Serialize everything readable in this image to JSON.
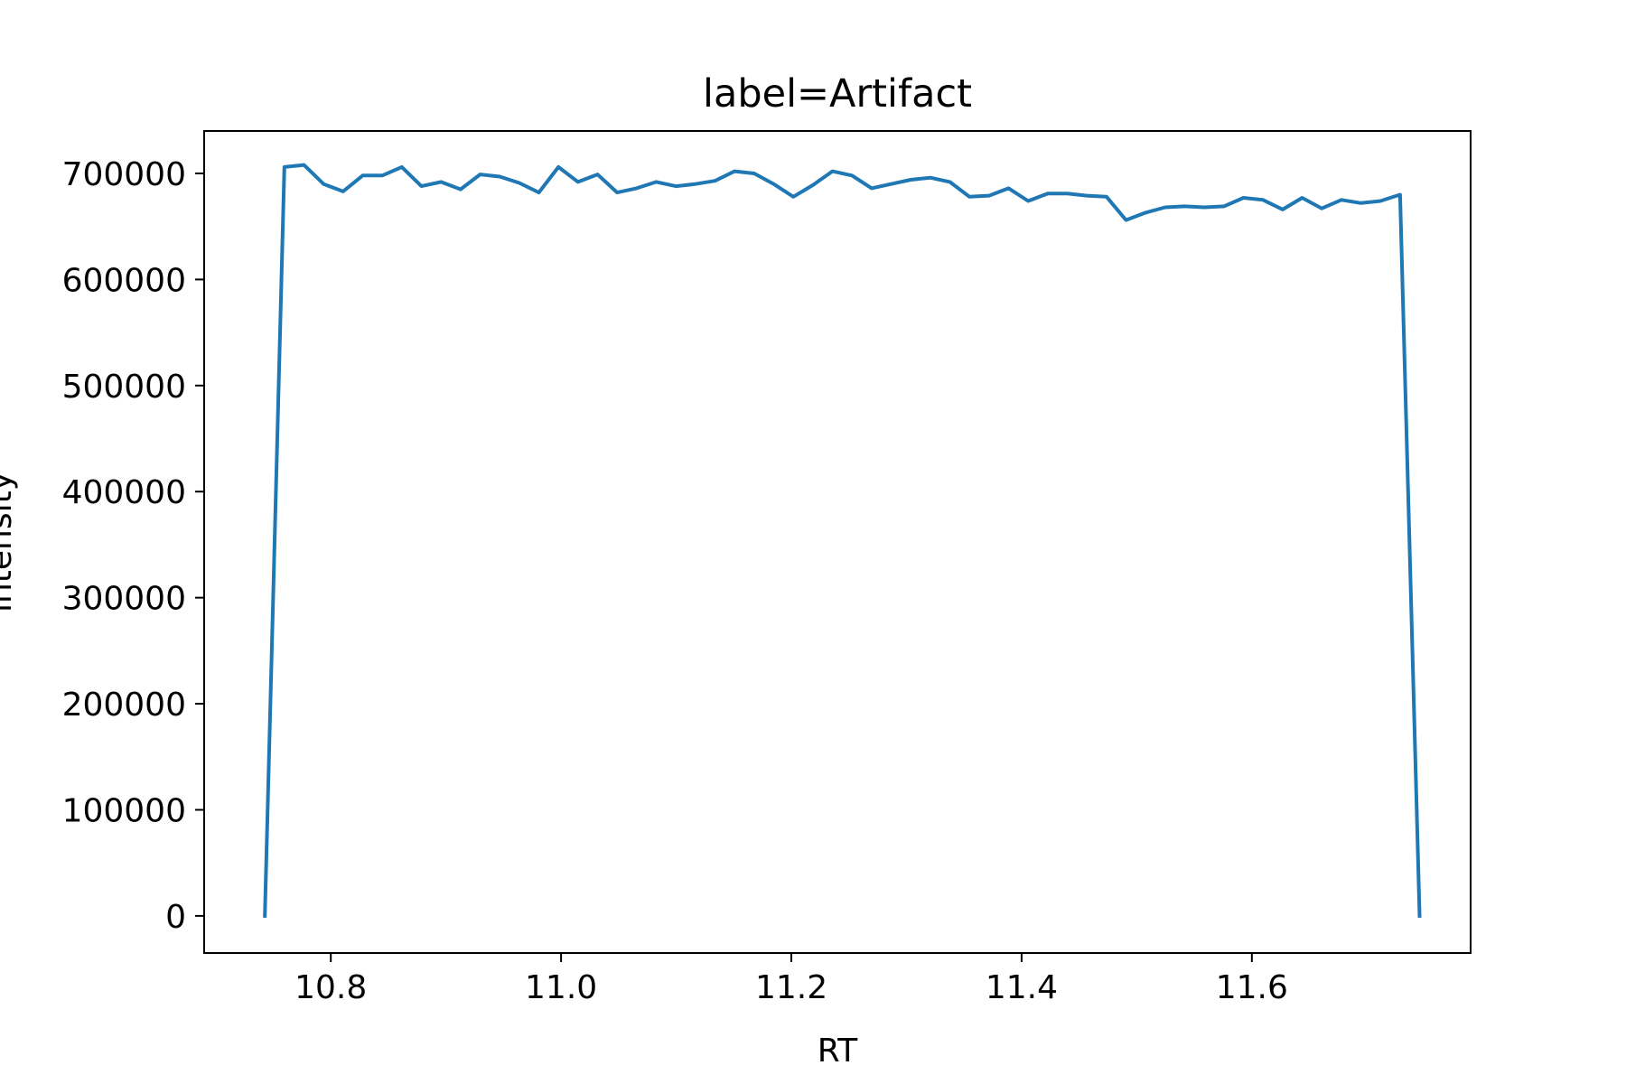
{
  "chart_data": {
    "type": "line",
    "title": "label=Artifact",
    "xlabel": "RT",
    "ylabel": "intensity",
    "xlim": [
      10.69,
      11.79
    ],
    "ylim": [
      -35000,
      740000
    ],
    "x_ticks": [
      10.8,
      11.0,
      11.2,
      11.4,
      11.6
    ],
    "x_tick_labels": [
      "10.8",
      "11.0",
      "11.2",
      "11.4",
      "11.6"
    ],
    "y_ticks": [
      0,
      100000,
      200000,
      300000,
      400000,
      500000,
      600000,
      700000
    ],
    "y_tick_labels": [
      "0",
      "100000",
      "200000",
      "300000",
      "400000",
      "500000",
      "600000",
      "700000"
    ],
    "grid": false,
    "series": [
      {
        "color": "#1f77b4",
        "x": [
          10.7427,
          10.7597,
          10.7767,
          10.7937,
          10.8107,
          10.8277,
          10.8447,
          10.8617,
          10.8787,
          10.8957,
          10.9127,
          10.9297,
          10.9467,
          10.9637,
          10.9807,
          10.9977,
          11.0147,
          11.0317,
          11.0487,
          11.0657,
          11.0827,
          11.0997,
          11.1167,
          11.1337,
          11.1507,
          11.1677,
          11.1847,
          11.2017,
          11.2187,
          11.2357,
          11.2527,
          11.2697,
          11.2867,
          11.3037,
          11.3207,
          11.3377,
          11.3547,
          11.3717,
          11.3887,
          11.4057,
          11.4227,
          11.4397,
          11.4567,
          11.4737,
          11.4907,
          11.5077,
          11.5247,
          11.5417,
          11.5587,
          11.5757,
          11.5927,
          11.6097,
          11.6267,
          11.6437,
          11.6607,
          11.6777,
          11.6947,
          11.7117,
          11.7287,
          11.7457
        ],
        "y": [
          0,
          706000,
          708000,
          690000,
          683000,
          698000,
          698000,
          706000,
          688000,
          692000,
          685000,
          699000,
          697000,
          691000,
          682000,
          706000,
          692000,
          699000,
          682000,
          686000,
          692000,
          688000,
          690000,
          693000,
          702000,
          700000,
          690000,
          678000,
          689000,
          702000,
          698000,
          686000,
          690000,
          694000,
          696000,
          692000,
          678000,
          679000,
          686000,
          674000,
          681000,
          681000,
          679000,
          678000,
          656000,
          663000,
          668000,
          669000,
          668000,
          669000,
          677000,
          675000,
          666000,
          677000,
          667000,
          675000,
          672000,
          674000,
          680000,
          0
        ]
      }
    ]
  }
}
